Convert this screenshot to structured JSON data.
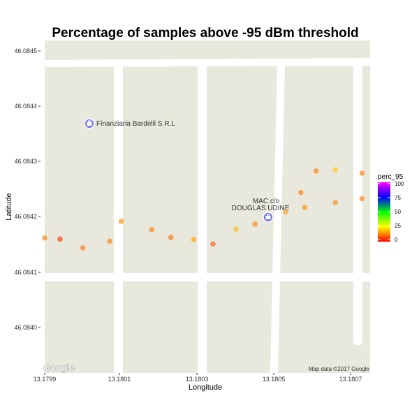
{
  "chart_data": {
    "type": "scatter",
    "title": "Percentage of samples above -95 dBm threshold",
    "xlabel": "Longitude",
    "ylabel": "Latitude",
    "xlim": [
      13.1799,
      13.18073
    ],
    "ylim": [
      46.08393,
      46.084535
    ],
    "x_ticks": [
      "13.1799",
      "13.1801",
      "13.1803",
      "13.1805",
      "13.1807"
    ],
    "y_ticks": [
      "46.0840",
      "46.0841",
      "46.0842",
      "46.0843",
      "46.0844",
      "46.0845"
    ],
    "legend": {
      "title": "perc_95",
      "labels": [
        "100",
        "75",
        "50",
        "25",
        "0"
      ],
      "placement": "right"
    },
    "points": [
      {
        "lon": 13.1799,
        "lat": 46.084162,
        "perc_95": 12
      },
      {
        "lon": 13.17994,
        "lat": 46.08416,
        "perc_95": 4
      },
      {
        "lon": 13.18,
        "lat": 46.084144,
        "perc_95": 11
      },
      {
        "lon": 13.18007,
        "lat": 46.084156,
        "perc_95": 12
      },
      {
        "lon": 13.1801,
        "lat": 46.084192,
        "perc_95": 13
      },
      {
        "lon": 13.18018,
        "lat": 46.084177,
        "perc_95": 12
      },
      {
        "lon": 13.18023,
        "lat": 46.084163,
        "perc_95": 11
      },
      {
        "lon": 13.18029,
        "lat": 46.084159,
        "perc_95": 16
      },
      {
        "lon": 13.18034,
        "lat": 46.084151,
        "perc_95": 8
      },
      {
        "lon": 13.1804,
        "lat": 46.084178,
        "perc_95": 18
      },
      {
        "lon": 13.18045,
        "lat": 46.084187,
        "perc_95": 12
      },
      {
        "lon": 13.18053,
        "lat": 46.084209,
        "perc_95": 15
      },
      {
        "lon": 13.18057,
        "lat": 46.084244,
        "perc_95": 12
      },
      {
        "lon": 13.18058,
        "lat": 46.084217,
        "perc_95": 13
      },
      {
        "lon": 13.18061,
        "lat": 46.084283,
        "perc_95": 12
      },
      {
        "lon": 13.18066,
        "lat": 46.084285,
        "perc_95": 20
      },
      {
        "lon": 13.18066,
        "lat": 46.084226,
        "perc_95": 13
      },
      {
        "lon": 13.18073,
        "lat": 46.084279,
        "perc_95": 12
      },
      {
        "lon": 13.18073,
        "lat": 46.084233,
        "perc_95": 12
      }
    ],
    "grid": false
  },
  "map": {
    "background": "#e8e8dd",
    "road_color": "#ffffff",
    "pois": [
      {
        "label": "Finanziaria Bardelli S.R.L",
        "lon": 13.18001,
        "lat": 46.084368
      },
      {
        "label_line1": "MAC c/o",
        "label_line2": "DOUGLAS UDINE",
        "lon": 13.18048,
        "lat": 46.084199
      }
    ],
    "attribution": "Map data ©2017 Google",
    "logo": "Google"
  },
  "colors": {
    "scale": [
      "#ff0000",
      "#ffff00",
      "#00ff00",
      "#0000ff",
      "#ff00ff"
    ],
    "poi_icon": "#7b7fe8"
  }
}
